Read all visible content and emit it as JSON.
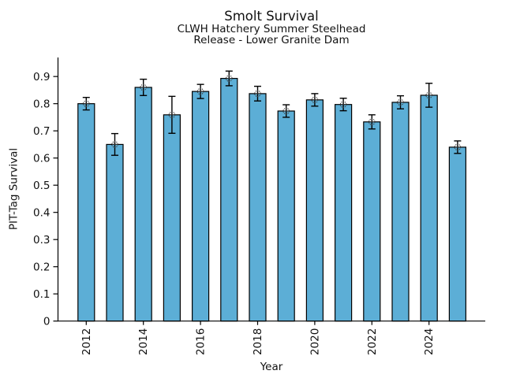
{
  "title": "Smolt Survival",
  "subtitle_line1": "CLWH Hatchery Summer Steelhead",
  "subtitle_line2": "Release - Lower Granite Dam",
  "chart_data": {
    "type": "bar",
    "title": "Smolt Survival",
    "subtitle": [
      "CLWH Hatchery Summer Steelhead",
      "Release - Lower Granite Dam"
    ],
    "xlabel": "Year",
    "ylabel": "PIT-Tag Survival",
    "categories": [
      2012,
      2013,
      2014,
      2015,
      2016,
      2017,
      2018,
      2019,
      2020,
      2021,
      2022,
      2023,
      2024,
      2025
    ],
    "values": [
      0.8,
      0.65,
      0.86,
      0.759,
      0.845,
      0.893,
      0.837,
      0.773,
      0.814,
      0.797,
      0.733,
      0.805,
      0.831,
      0.64
    ],
    "error_bars": [
      0.023,
      0.04,
      0.03,
      0.068,
      0.026,
      0.027,
      0.027,
      0.023,
      0.023,
      0.023,
      0.026,
      0.024,
      0.044,
      0.023
    ],
    "marker": "open-circle-with-plus",
    "x_tick_labels": [
      "2012",
      "2014",
      "2016",
      "2018",
      "2020",
      "2022",
      "2024"
    ],
    "x_tick_years": [
      2012,
      2014,
      2016,
      2018,
      2020,
      2022,
      2024
    ],
    "x_tick_label_rotation": 90,
    "y_ticks": [
      0,
      0.1,
      0.2,
      0.3,
      0.4,
      0.5,
      0.6,
      0.7,
      0.8,
      0.9
    ],
    "y_tick_labels": [
      "0",
      "0.1",
      "0.2",
      "0.3",
      "0.4",
      "0.5",
      "0.6",
      "0.7",
      "0.8",
      "0.9"
    ],
    "ylim": [
      0,
      0.97
    ],
    "xlim": [
      2011,
      2026
    ],
    "grid": false,
    "legend": null,
    "bar_color": "#5caed6",
    "bar_edge_color": "#000000",
    "error_bar_color": "#000000",
    "marker_edge_color": "#3c3c3c"
  }
}
